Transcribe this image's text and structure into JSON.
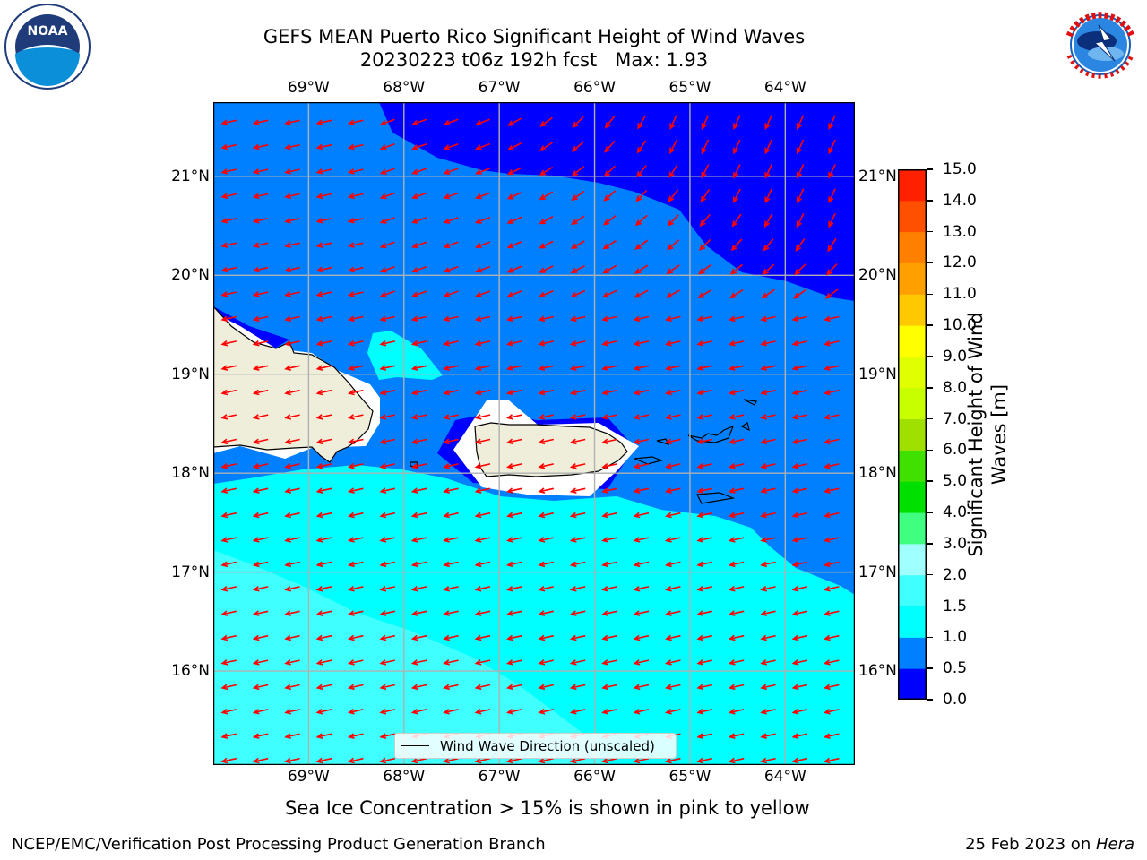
{
  "header": {
    "title_line1": "GEFS MEAN Puerto Rico Significant Height of Wind Waves",
    "title_line2": "20230223 t06z 192h fcst   Max: 1.93"
  },
  "logos": {
    "left": "noaa-logo",
    "right": "national-weather-service-logo"
  },
  "map": {
    "lon_labels": [
      "69°W",
      "68°W",
      "67°W",
      "66°W",
      "65°W",
      "64°W"
    ],
    "lat_labels": [
      "21°N",
      "20°N",
      "19°N",
      "18°N",
      "17°N",
      "16°N"
    ],
    "lon_values": [
      -69,
      -68,
      -67,
      -66,
      -65,
      -64
    ],
    "lat_values": [
      21,
      20,
      19,
      18,
      17,
      16
    ],
    "extent": {
      "lon_min": -70,
      "lon_max": -63.27,
      "lat_min": 15.05,
      "lat_max": 21.75
    },
    "legend_label": "Wind Wave Direction (unscaled)",
    "arrow_color": "#ff0000",
    "land_color": "#efeedb",
    "grid_color": "#b0b0b0"
  },
  "colorbar": {
    "label_line1": "Significant Height of Wind",
    "label_line2": "Waves [m]",
    "ticks": [
      "0.0",
      "0.5",
      "1.0",
      "1.5",
      "2.0",
      "3.0",
      "4.0",
      "5.0",
      "6.0",
      "7.0",
      "8.0",
      "9.0",
      "10.0",
      "11.0",
      "12.0",
      "13.0",
      "14.0",
      "15.0"
    ],
    "colors": [
      "#0000ff",
      "#0080ff",
      "#00ffff",
      "#40ffff",
      "#a0ffff",
      "#40ff80",
      "#00e000",
      "#40e000",
      "#a0e000",
      "#c8ff00",
      "#e0ff00",
      "#ffff00",
      "#ffc800",
      "#ffa000",
      "#ff8000",
      "#ff5000",
      "#ff2000"
    ]
  },
  "note": "Sea Ice Concentration > 15% is shown in pink to yellow",
  "footer": {
    "left": "NCEP/EMC/Verification Post Processing Product Generation Branch",
    "right_date": "25 Feb 2023 on ",
    "right_host": "Hera"
  }
}
